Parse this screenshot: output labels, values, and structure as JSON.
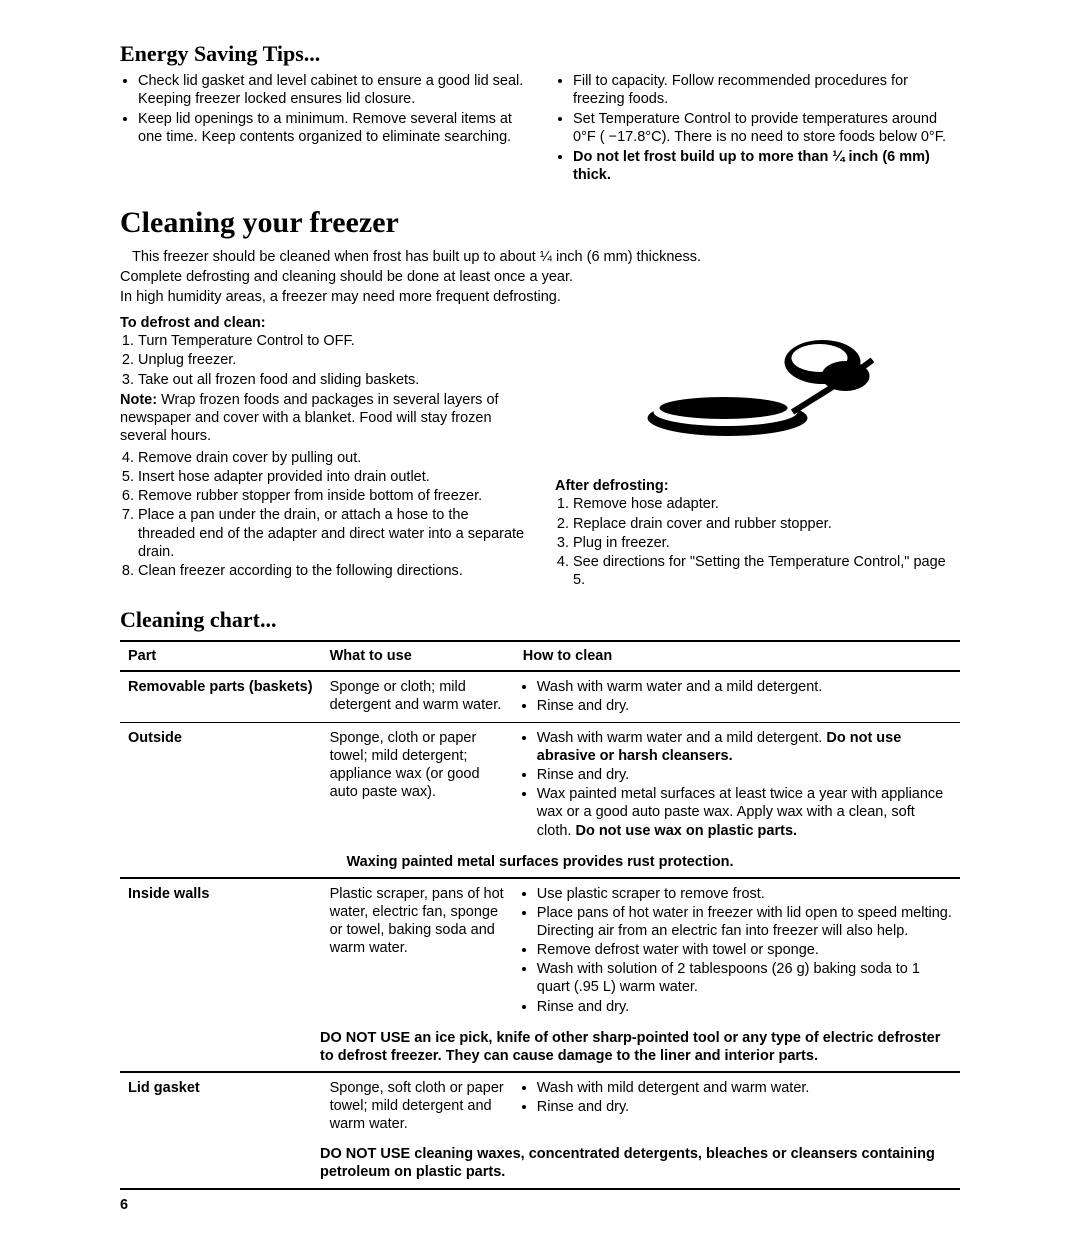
{
  "energy_saving": {
    "heading": "Energy Saving Tips...",
    "left_bullets": [
      "Check lid gasket and level cabinet to ensure a good lid seal. Keeping freezer locked ensures lid closure.",
      "Keep lid openings to a minimum. Remove several items at one time. Keep contents organized to eliminate searching."
    ],
    "right_bullets": [
      "Fill to capacity. Follow recommended procedures for freezing foods.",
      "Set Temperature Control to provide temperatures around 0°F ( −17.8°C). There is no need to store foods below 0°F."
    ],
    "right_bold_bullet": "Do not let frost build up to more than ¼ inch (6 mm) thick."
  },
  "cleaning": {
    "heading": "Cleaning your freezer",
    "intro1": "This freezer should be cleaned when frost has built up to about ¼ inch (6 mm) thickness.",
    "intro2": "Complete defrosting and cleaning should be done at least once a year.",
    "intro3": "In high humidity areas, a freezer may need more frequent defrosting.",
    "defrost_heading": "To defrost and clean:",
    "steps_a": [
      "Turn Temperature Control to OFF.",
      "Unplug freezer.",
      "Take out all frozen food and sliding baskets."
    ],
    "note_bold": "Note:",
    "note_text": " Wrap frozen foods and packages in several layers of newspaper and cover with a blanket. Food will stay frozen several hours.",
    "steps_b": [
      "Remove drain cover by pulling out.",
      "Insert hose adapter provided into drain outlet.",
      "Remove rubber stopper from inside bottom of freezer.",
      "Place a pan under the drain, or attach a hose to the threaded end of the adapter and direct water into a separate drain.",
      "Clean freezer according to the following directions."
    ],
    "after_heading": "After defrosting:",
    "after_steps": [
      "Remove hose adapter.",
      "Replace drain cover and rubber stopper.",
      "Plug in freezer.",
      "See directions for \"Setting the Temperature Control,\" page 5."
    ]
  },
  "chart": {
    "heading": "Cleaning chart...",
    "headers": {
      "part": "Part",
      "what": "What to use",
      "how": "How to clean"
    },
    "rows": [
      {
        "part": "Removable parts (baskets)",
        "what": "Sponge or cloth; mild detergent and warm water.",
        "how": [
          "Wash with warm water and a mild detergent.",
          "Rinse and dry."
        ]
      },
      {
        "part": "Outside",
        "what": "Sponge, cloth or paper towel; mild detergent; appliance wax (or good auto paste wax).",
        "how_html": [
          {
            "pre": "Wash with warm water and a mild detergent. ",
            "bold": "Do not use abrasive or harsh cleansers.",
            "post": ""
          },
          {
            "pre": "Rinse and dry.",
            "bold": "",
            "post": ""
          },
          {
            "pre": "Wax painted metal surfaces at least twice a year with appliance wax or a good auto paste wax. Apply wax with a clean, soft cloth. ",
            "bold": "Do not use wax on plastic parts.",
            "post": ""
          }
        ],
        "note": "Waxing painted metal surfaces provides rust protection."
      },
      {
        "part": "Inside walls",
        "what": "Plastic scraper, pans of hot water, electric fan, sponge or towel, baking soda and warm water.",
        "how": [
          "Use plastic scraper to remove frost.",
          "Place pans of hot water in freezer with lid open to speed melting. Directing air from an electric fan into freezer will also help.",
          "Remove defrost water with towel or sponge.",
          "Wash with solution of 2 tablespoons (26 g) baking soda to 1 quart (.95 L) warm water.",
          "Rinse and dry."
        ],
        "note": "DO NOT USE an ice pick, knife of other sharp-pointed tool or any type of electric defroster to defrost freezer. They can cause damage to the liner and interior parts."
      },
      {
        "part": "Lid gasket",
        "what": "Sponge, soft cloth or paper towel; mild detergent and warm water.",
        "how": [
          "Wash with mild detergent and warm water.",
          "Rinse and dry."
        ],
        "note": "DO NOT USE cleaning waxes, concentrated detergents, bleaches or cleansers containing petroleum on plastic parts."
      }
    ]
  },
  "page_number": "6"
}
